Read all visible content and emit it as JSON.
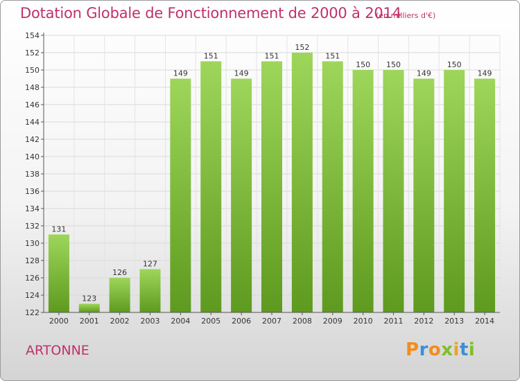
{
  "title": "Dotation Globale de Fonctionnement de 2000 à 2014",
  "unit": "(en milliers d'€)",
  "commune": "ARTONNE",
  "logo": {
    "letters": [
      "P",
      "r",
      "o",
      "x",
      "i",
      "t",
      "i"
    ],
    "colors": [
      "#f28c1e",
      "#3b8fd4",
      "#f28c1e",
      "#7fbf2a",
      "#e5a623",
      "#3b8fd4",
      "#7fbf2a"
    ]
  },
  "colors": {
    "bar": "#7fc03a",
    "bar_light": "#9dd65a",
    "bar_dark": "#5e9a1f",
    "title": "#c0306a"
  },
  "chart_data": {
    "type": "bar",
    "title": "Dotation Globale de Fonctionnement de 2000 à 2014",
    "categories": [
      "2000",
      "2001",
      "2002",
      "2003",
      "2004",
      "2005",
      "2006",
      "2007",
      "2008",
      "2009",
      "2010",
      "2011",
      "2012",
      "2013",
      "2014"
    ],
    "values": [
      131,
      123,
      126,
      127,
      149,
      151,
      149,
      151,
      152,
      151,
      150,
      150,
      149,
      150,
      149
    ],
    "data_labels": [
      "131",
      "123",
      "126",
      "127",
      "149",
      "151",
      "149",
      "151",
      "152",
      "151",
      "150",
      "150",
      "149",
      "150",
      "149"
    ],
    "ylim": [
      122,
      154
    ],
    "yticks": [
      "122",
      "124",
      "126",
      "128",
      "130",
      "132",
      "134",
      "136",
      "138",
      "140",
      "142",
      "144",
      "146",
      "148",
      "150",
      "152",
      "154"
    ],
    "grid": true,
    "legend": "none"
  }
}
